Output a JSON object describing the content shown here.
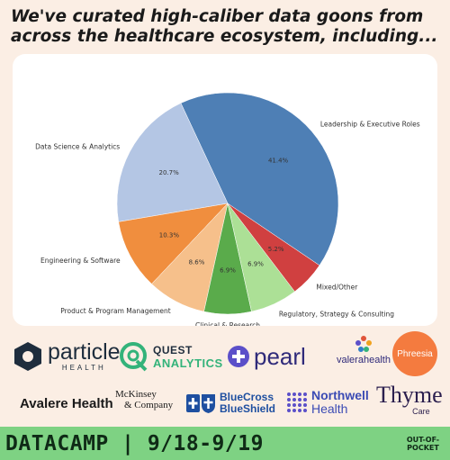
{
  "headline": "We've curated high-caliber data goons from across the healthcare ecosystem, including...",
  "chart_data": {
    "type": "pie",
    "title": "",
    "slices": [
      {
        "label": "Leadership & Executive Roles",
        "value": 41.4,
        "pct_label": "41.4%",
        "color": "#4e7fb5"
      },
      {
        "label": "Data Science & Analytics",
        "value": 20.7,
        "pct_label": "20.7%",
        "color": "#b4c6e4"
      },
      {
        "label": "Engineering & Software",
        "value": 10.3,
        "pct_label": "10.3%",
        "color": "#f08e3e"
      },
      {
        "label": "Product & Program Management",
        "value": 8.6,
        "pct_label": "8.6%",
        "color": "#f6c08b"
      },
      {
        "label": "Clinical & Research",
        "value": 6.9,
        "pct_label": "6.9%",
        "color": "#5aab4b"
      },
      {
        "label": "Regulatory, Strategy & Consulting",
        "value": 6.9,
        "pct_label": "6.9%",
        "color": "#ace096"
      },
      {
        "label": "Mixed/Other",
        "value": 5.2,
        "pct_label": "5.2%",
        "color": "#d04040"
      }
    ]
  },
  "logos": {
    "particle": {
      "name": "particle",
      "sub": "HEALTH"
    },
    "quest": {
      "line1": "QUEST",
      "line2": "ANALYTICS"
    },
    "pearl": {
      "name": "pearl"
    },
    "valera": {
      "name": "valerahealth"
    },
    "phreesia": {
      "name": "Phreesia"
    },
    "avalere": {
      "name": "Avalere Health"
    },
    "mckinsey": {
      "line1": "McKinsey",
      "line2": "& Company"
    },
    "bluecross": {
      "line1": "BlueCross",
      "line2": "BlueShield"
    },
    "northwell": {
      "line1": "Northwell",
      "line2": "Health"
    },
    "thyme": {
      "name": "Thyme",
      "sub": "Care"
    }
  },
  "footer": {
    "event": "DATACAMP | 9/18-9/19",
    "brand_line1": "OUT-OF-",
    "brand_line2": "POCKET",
    "color": "#7ed283"
  }
}
